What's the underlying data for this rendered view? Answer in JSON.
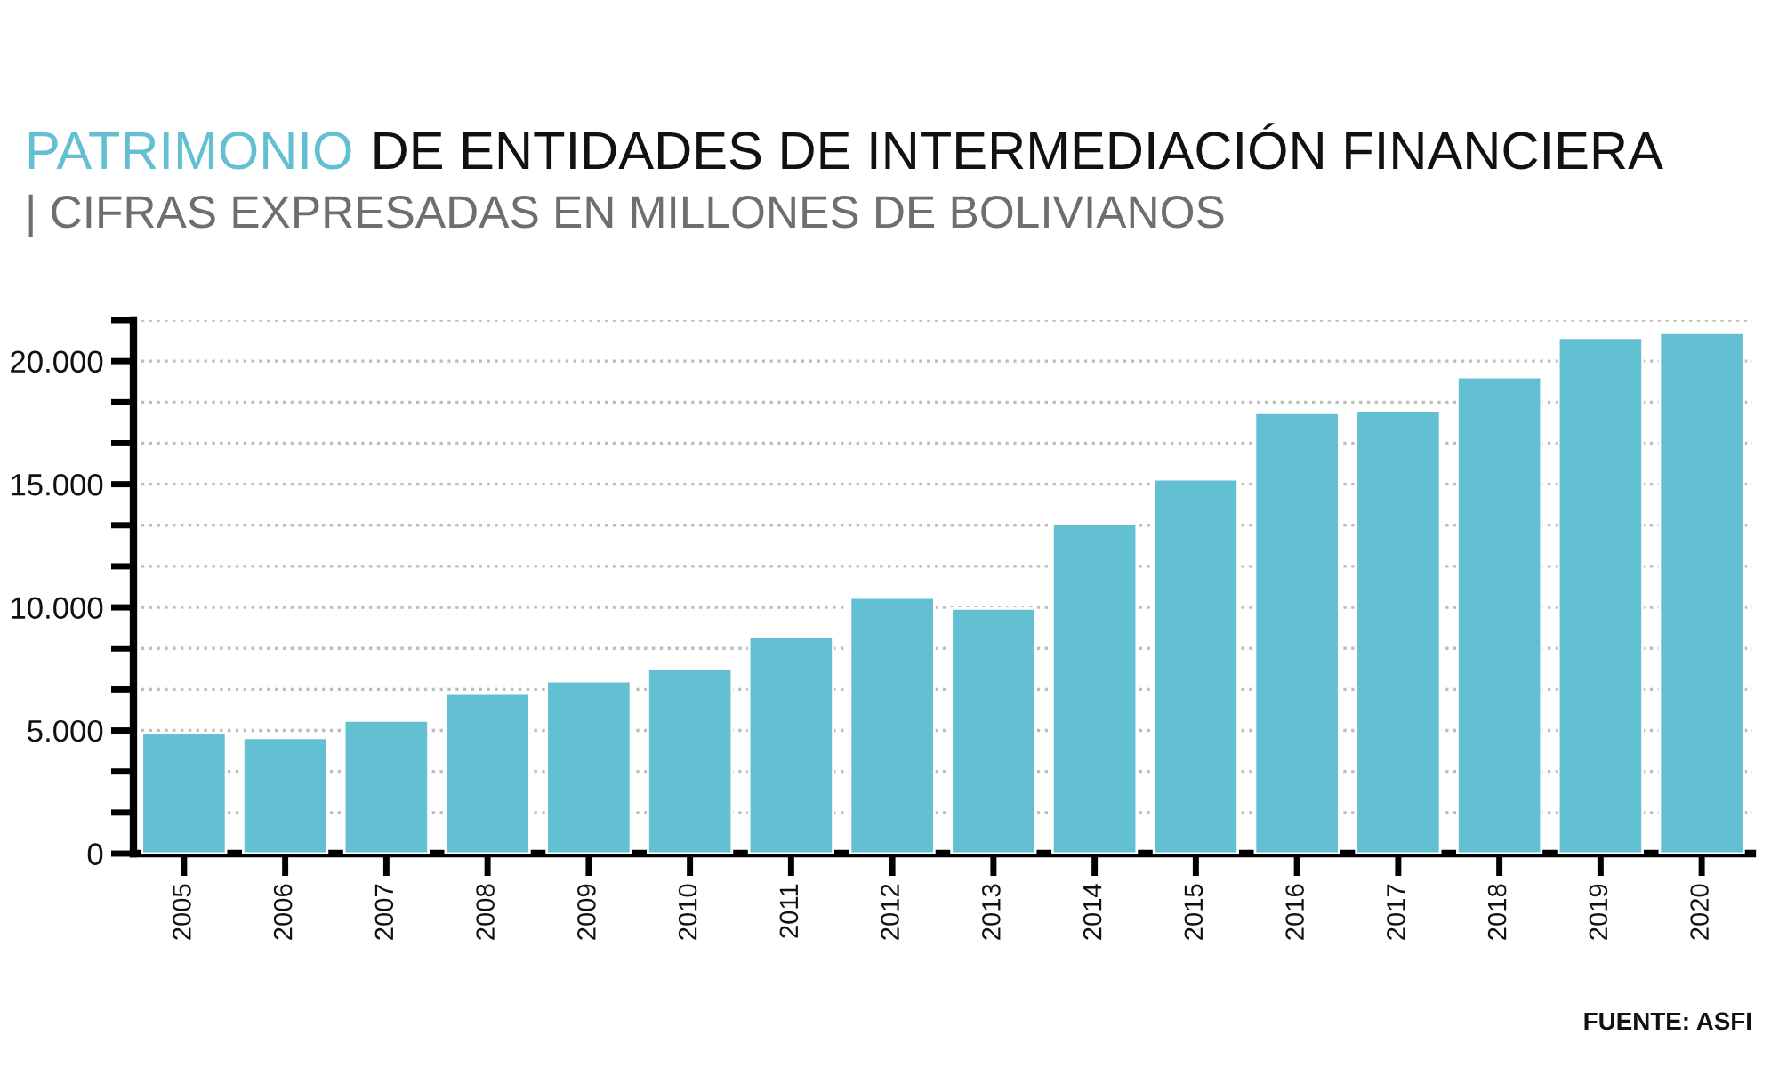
{
  "chart_data": {
    "type": "bar",
    "title": "PATRIMONIO DE ENTIDADES DE INTERMEDIACIÓN FINANCIERA",
    "subtitle": "| CIFRAS EXPRESADAS EN MILLONES DE BOLIVIANOS",
    "categories": [
      "2005",
      "2006",
      "2007",
      "2008",
      "2009",
      "2010",
      "2011",
      "2012",
      "2013",
      "2014",
      "2015",
      "2016",
      "2017",
      "2018",
      "2019",
      "2020"
    ],
    "values": [
      4900,
      4700,
      5400,
      6500,
      7000,
      7500,
      8800,
      10400,
      9950,
      13400,
      15200,
      17900,
      18000,
      19350,
      20950,
      21150
    ],
    "color": "#63bfd2",
    "ylim": [
      0,
      21667
    ],
    "yticks": [
      0,
      {
        "value": 1667,
        "label": null
      },
      {
        "value": 3333,
        "label": null
      },
      {
        "value": 5000,
        "label": "5.000"
      },
      {
        "value": 6667,
        "label": null
      },
      {
        "value": 8333,
        "label": null
      },
      {
        "value": 10000,
        "label": "10.000"
      },
      {
        "value": 11667,
        "label": null
      },
      {
        "value": 13333,
        "label": null
      },
      {
        "value": 15000,
        "label": "15.000"
      },
      {
        "value": 16667,
        "label": null
      },
      {
        "value": 18333,
        "label": null
      },
      {
        "value": 20000,
        "label": "20.000"
      },
      {
        "value": 21667,
        "label": null
      }
    ],
    "grid": "y",
    "annotations": [
      "FUENTE: ASFI"
    ]
  }
}
